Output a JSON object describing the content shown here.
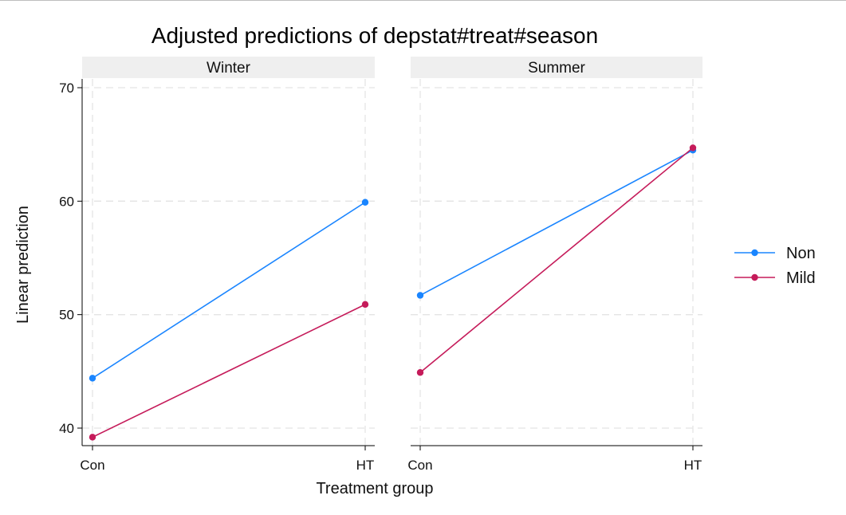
{
  "chart_data": {
    "type": "line",
    "title": "Adjusted predictions of depstat#treat#season",
    "xlabel": "Treatment group",
    "ylabel": "Linear prediction",
    "categories": [
      "Con",
      "HT"
    ],
    "ylim": [
      38.5,
      70.5
    ],
    "yticks": [
      40,
      50,
      60,
      70
    ],
    "grid": true,
    "legend_position": "right",
    "panels": [
      {
        "label": "Winter",
        "series": [
          {
            "name": "Non",
            "values": [
              44.4,
              59.9
            ]
          },
          {
            "name": "Mild",
            "values": [
              39.2,
              50.9
            ]
          }
        ]
      },
      {
        "label": "Summer",
        "series": [
          {
            "name": "Non",
            "values": [
              51.7,
              64.5
            ]
          },
          {
            "name": "Mild",
            "values": [
              44.9,
              64.7
            ]
          }
        ]
      }
    ],
    "legend": [
      {
        "name": "Non",
        "color": "#1a85ff"
      },
      {
        "name": "Mild",
        "color": "#c51b5a"
      }
    ]
  }
}
